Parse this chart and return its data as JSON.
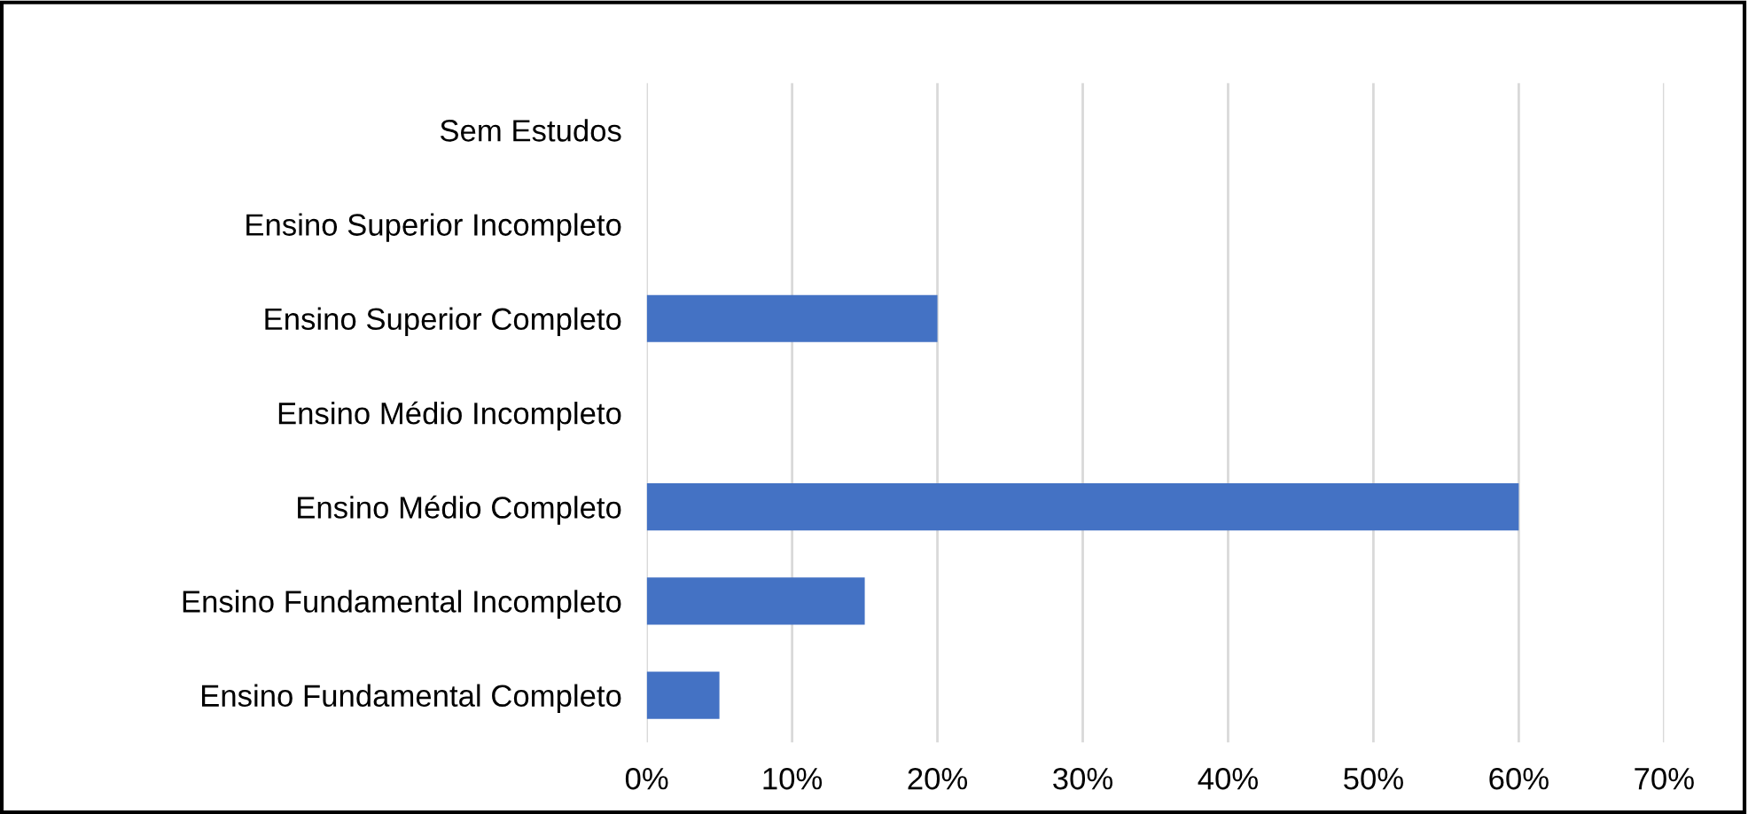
{
  "chart_data": {
    "type": "bar",
    "orientation": "horizontal",
    "categories": [
      "Sem Estudos",
      "Ensino Superior Incompleto",
      "Ensino Superior Completo",
      "Ensino Médio Incompleto",
      "Ensino Médio Completo",
      "Ensino Fundamental Incompleto",
      "Ensino Fundamental Completo"
    ],
    "values": [
      0,
      0,
      20,
      0,
      60,
      15,
      5
    ],
    "color": "#4472c4",
    "xlim": [
      0,
      70
    ],
    "xticks": [
      {
        "value": 0,
        "label": "0%"
      },
      {
        "value": 10,
        "label": "10%"
      },
      {
        "value": 20,
        "label": "20%"
      },
      {
        "value": 30,
        "label": "30%"
      },
      {
        "value": 40,
        "label": "40%"
      },
      {
        "value": 50,
        "label": "50%"
      },
      {
        "value": 60,
        "label": "60%"
      },
      {
        "value": 70,
        "label": "70%"
      }
    ],
    "grid": "x",
    "legend": false
  }
}
